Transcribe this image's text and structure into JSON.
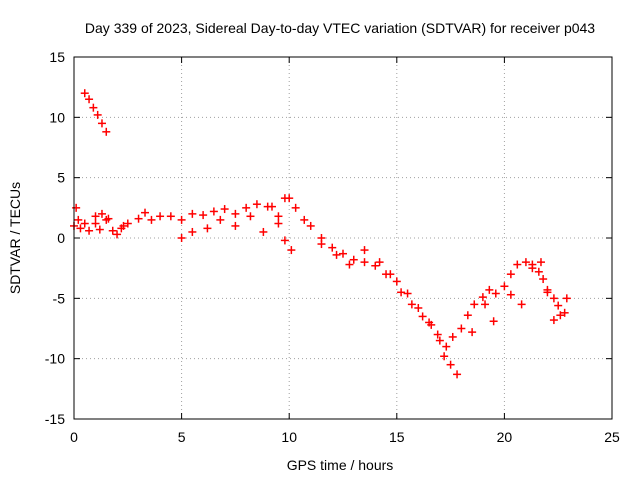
{
  "chart_data": {
    "type": "scatter",
    "title": "Day 339 of 2023, Sidereal Day-to-day VTEC variation (SDTVAR) for receiver p043",
    "xlabel": "GPS time / hours",
    "ylabel": "SDTVAR / TECUs",
    "xlim": [
      0,
      25
    ],
    "ylim": [
      -15,
      15
    ],
    "x_ticks": [
      0,
      5,
      10,
      15,
      20,
      25
    ],
    "y_ticks": [
      -15,
      -10,
      -5,
      0,
      5,
      10,
      15
    ],
    "x_tick_labels": [
      "0",
      "5",
      "10",
      "15",
      "20",
      "25"
    ],
    "y_tick_labels": [
      "-15",
      "-10",
      "-5",
      "0",
      "5",
      "10",
      "15"
    ],
    "grid": true,
    "marker": "+",
    "series": [
      {
        "name": "SDTVAR",
        "color": "#ff0000",
        "x": [
          0.0,
          0.1,
          0.2,
          0.3,
          0.5,
          0.7,
          1.0,
          1.2,
          1.5,
          1.8,
          2.2,
          2.5,
          3.0,
          3.3,
          3.6,
          4.0,
          4.5,
          5.0,
          5.5,
          6.0,
          6.5,
          7.0,
          7.5,
          8.0,
          8.5,
          9.0,
          9.5,
          9.8,
          10.0,
          10.3,
          10.7,
          11.0,
          11.5,
          12.0,
          12.5,
          13.0,
          13.5,
          14.0,
          14.5,
          15.0,
          15.5,
          16.0,
          16.5,
          17.0,
          17.3,
          17.6,
          18.0,
          18.3,
          18.6,
          19.0,
          19.3,
          19.6,
          20.0,
          20.3,
          20.6,
          21.0,
          21.3,
          21.6,
          21.8,
          22.0,
          22.3,
          22.5,
          22.8,
          0.5,
          0.7,
          0.9,
          1.1,
          1.3,
          1.5,
          1.0,
          1.3,
          1.6,
          2.0,
          2.3,
          5.0,
          5.5,
          6.2,
          6.8,
          7.5,
          8.2,
          8.8,
          9.2,
          9.5,
          9.8,
          10.1,
          11.5,
          12.2,
          12.8,
          13.5,
          14.2,
          14.7,
          15.2,
          15.7,
          16.2,
          16.6,
          16.9,
          17.2,
          17.5,
          17.8,
          18.5,
          19.1,
          19.5,
          20.3,
          20.8,
          21.3,
          21.7,
          22.0,
          22.3,
          22.6,
          22.9
        ],
        "y": [
          1.0,
          2.5,
          1.5,
          0.8,
          1.2,
          0.6,
          1.2,
          0.7,
          1.5,
          0.6,
          0.8,
          1.2,
          1.6,
          2.1,
          1.5,
          1.8,
          1.8,
          1.5,
          2.0,
          1.9,
          2.2,
          2.4,
          2.0,
          2.5,
          2.8,
          2.6,
          1.8,
          3.3,
          3.3,
          2.5,
          1.5,
          1.0,
          0.0,
          -0.8,
          -1.3,
          -1.8,
          -2.0,
          -2.3,
          -3.0,
          -3.6,
          -4.6,
          -5.8,
          -7.0,
          -8.5,
          -9.0,
          -8.2,
          -7.5,
          -6.4,
          -5.5,
          -4.9,
          -4.3,
          -4.6,
          -4.0,
          -3.0,
          -2.2,
          -2.0,
          -2.2,
          -2.8,
          -3.4,
          -4.3,
          -5.0,
          -5.6,
          -6.2,
          12.0,
          11.5,
          10.8,
          10.2,
          9.5,
          8.8,
          1.8,
          2.0,
          1.6,
          0.3,
          1.0,
          0.0,
          0.5,
          0.8,
          1.5,
          1.0,
          1.8,
          0.5,
          2.6,
          1.2,
          -0.2,
          -1.0,
          -0.5,
          -1.4,
          -2.2,
          -1.0,
          -2.0,
          -3.0,
          -4.5,
          -5.5,
          -6.5,
          -7.2,
          -8.0,
          -9.8,
          -10.5,
          -11.3,
          -7.8,
          -5.5,
          -6.9,
          -4.7,
          -5.5,
          -2.5,
          -2.0,
          -4.5,
          -6.8,
          -6.4,
          -5.0
        ]
      }
    ]
  }
}
